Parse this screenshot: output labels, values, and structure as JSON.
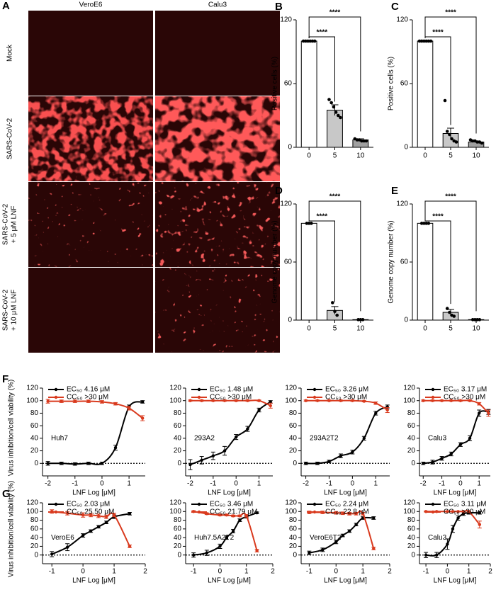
{
  "panel_a": {
    "panel": "A",
    "columns": [
      "VeroE6",
      "Calu3"
    ],
    "rows": [
      [
        "Mock"
      ],
      [
        "SARS-CoV-2"
      ],
      [
        "SARS-CoV-2",
        "+ 5 μM LNF"
      ],
      [
        "SARS-CoV-2",
        "+ 10 μM LNF"
      ]
    ]
  },
  "chart_data": [
    {
      "type": "bar",
      "panel": "B",
      "ylabel": "Positive cells (%)",
      "categories": [
        "0",
        "5",
        "10"
      ],
      "values": [
        100,
        35,
        7
      ],
      "errors": [
        0,
        5,
        1
      ],
      "points": [
        [
          100,
          100,
          100,
          100,
          100,
          100
        ],
        [
          45,
          42,
          38,
          33,
          30,
          28
        ],
        [
          8,
          7,
          7,
          6,
          6,
          6
        ]
      ],
      "colors": [
        "#ffffff",
        "#c8c8c8",
        "#a0a0a0"
      ],
      "ylim": [
        0,
        120
      ],
      "yticks": [
        0,
        60,
        120
      ],
      "annotations": [
        "****",
        "****"
      ]
    },
    {
      "type": "bar",
      "panel": "C",
      "ylabel": "Positive cells (%)",
      "categories": [
        "0",
        "5",
        "10"
      ],
      "values": [
        100,
        13,
        5
      ],
      "errors": [
        0,
        5,
        1
      ],
      "points": [
        [
          100,
          100,
          100,
          100,
          100,
          100
        ],
        [
          44,
          15,
          12,
          8,
          6,
          5
        ],
        [
          7,
          6,
          6,
          5,
          5,
          4
        ]
      ],
      "colors": [
        "#ffffff",
        "#c8c8c8",
        "#a0a0a0"
      ],
      "ylim": [
        0,
        120
      ],
      "yticks": [
        0,
        60,
        120
      ],
      "annotations": [
        "****",
        "****"
      ]
    },
    {
      "type": "bar",
      "panel": "D",
      "ylabel": "Genome copy number  (%)",
      "categories": [
        "0",
        "5",
        "10"
      ],
      "values": [
        100,
        10,
        0.5
      ],
      "errors": [
        0,
        4,
        0.3
      ],
      "points": [
        [
          100,
          100,
          100
        ],
        [
          18,
          9,
          5
        ],
        [
          0.5,
          0.5,
          0.5
        ]
      ],
      "colors": [
        "#ffffff",
        "#c8c8c8",
        "#a0a0a0"
      ],
      "ylim": [
        0,
        120
      ],
      "yticks": [
        0,
        60,
        120
      ],
      "annotations": [
        "****",
        "****"
      ]
    },
    {
      "type": "bar",
      "panel": "E",
      "ylabel": "Genome copy number  (%)",
      "categories": [
        "0",
        "5",
        "10"
      ],
      "values": [
        100,
        8,
        0.5
      ],
      "errors": [
        0,
        3,
        0.3
      ],
      "points": [
        [
          100,
          100,
          100,
          100
        ],
        [
          12,
          8,
          5,
          4
        ],
        [
          0.5,
          0.5,
          0.5,
          0.5
        ]
      ],
      "colors": [
        "#ffffff",
        "#c8c8c8",
        "#a0a0a0"
      ],
      "ylim": [
        0,
        120
      ],
      "yticks": [
        0,
        60,
        120
      ],
      "annotations": [
        "****",
        "****"
      ]
    },
    {
      "type": "dose",
      "panel": "F",
      "ylabel": "Virus inhibition/cell viability (%)",
      "label": "Huh7",
      "xlabel": "LNF Log [μM]",
      "x": [
        -2,
        -1.5,
        -1,
        -0.5,
        0,
        0.5,
        1,
        1.5
      ],
      "xlim": [
        -2.2,
        1.6
      ],
      "xticks": [
        -2,
        -1,
        0,
        1
      ],
      "ylim": [
        -20,
        120
      ],
      "yticks": [
        0,
        20,
        40,
        60,
        80,
        100,
        120
      ],
      "reference_line": 0,
      "series": [
        {
          "name": "EC₅₀ 4.16 μM",
          "color": "#000000",
          "values": [
            0,
            0,
            -1,
            0,
            0,
            25,
            90,
            98
          ],
          "errors": [
            3,
            2,
            2,
            2,
            2,
            4,
            3,
            2
          ]
        },
        {
          "name": "CC₅₀ >30 μM",
          "color": "#d93a1e",
          "values": [
            99,
            99,
            99,
            99,
            98,
            95,
            88,
            72
          ],
          "errors": [
            3,
            2,
            2,
            2,
            2,
            2,
            3,
            4
          ]
        }
      ]
    },
    {
      "type": "dose",
      "label": "293A2",
      "xlabel": "LNF Log [μM]",
      "x": [
        -2,
        -1.5,
        -1,
        -0.5,
        0,
        0.5,
        1,
        1.5
      ],
      "xlim": [
        -2.2,
        1.6
      ],
      "xticks": [
        -2,
        -1,
        0,
        1
      ],
      "ylim": [
        -20,
        120
      ],
      "yticks": [
        0,
        20,
        40,
        60,
        80,
        100,
        120
      ],
      "reference_line": 0,
      "series": [
        {
          "name": "EC₅₀ 1.48 μM",
          "color": "#000000",
          "values": [
            -2,
            5,
            12,
            20,
            42,
            55,
            85,
            98
          ],
          "errors": [
            8,
            6,
            6,
            7,
            4,
            4,
            3,
            2
          ]
        },
        {
          "name": "CC₅₀ >30 μM",
          "color": "#d93a1e",
          "values": [
            100,
            100,
            100,
            100,
            100,
            100,
            100,
            92
          ],
          "errors": [
            1,
            1,
            1,
            1,
            1,
            1,
            1,
            4
          ]
        }
      ]
    },
    {
      "type": "dose",
      "label": "293A2T2",
      "xlabel": "LNF Log [μM]",
      "x": [
        -2,
        -1.5,
        -1,
        -0.5,
        0,
        0.5,
        1,
        1.5
      ],
      "xlim": [
        -2.2,
        1.6
      ],
      "xticks": [
        -2,
        -1,
        0,
        1
      ],
      "ylim": [
        -20,
        120
      ],
      "yticks": [
        0,
        20,
        40,
        60,
        80,
        100,
        120
      ],
      "reference_line": 0,
      "series": [
        {
          "name": "EC₅₀ 3.26 μM",
          "color": "#000000",
          "values": [
            0,
            0,
            3,
            12,
            18,
            40,
            80,
            90
          ],
          "errors": [
            2,
            2,
            2,
            3,
            3,
            3,
            3,
            3
          ]
        },
        {
          "name": "CC₅₀ >30 μM",
          "color": "#d93a1e",
          "values": [
            100,
            100,
            100,
            100,
            100,
            99,
            96,
            85
          ],
          "errors": [
            1,
            1,
            1,
            1,
            1,
            1,
            2,
            4
          ]
        }
      ]
    },
    {
      "type": "dose",
      "label": "Calu3",
      "xlabel": "LNF Log [μM]",
      "x": [
        -2,
        -1.5,
        -1,
        -0.5,
        0,
        0.5,
        1,
        1.5
      ],
      "xlim": [
        -2.2,
        1.6
      ],
      "xticks": [
        -2,
        -1,
        0,
        1
      ],
      "ylim": [
        -20,
        120
      ],
      "yticks": [
        0,
        20,
        40,
        60,
        80,
        100,
        120
      ],
      "reference_line": 0,
      "series": [
        {
          "name": "EC₅₀ 3.17 μM",
          "color": "#000000",
          "values": [
            0,
            2,
            8,
            15,
            30,
            40,
            80,
            82
          ],
          "errors": [
            2,
            3,
            3,
            3,
            3,
            4,
            5,
            4
          ]
        },
        {
          "name": "CC₅₀ >30 μM",
          "color": "#d93a1e",
          "values": [
            100,
            100,
            100,
            100,
            100,
            100,
            95,
            80
          ],
          "errors": [
            1,
            1,
            1,
            1,
            1,
            1,
            2,
            5
          ]
        }
      ]
    },
    {
      "type": "dose",
      "panel": "G",
      "ylabel": "Virus inhibition/cell viability (%)",
      "label": "VeroE6",
      "xlabel": "LNF Log [μM]",
      "x": [
        -1,
        -0.5,
        0,
        0.25,
        0.5,
        0.75,
        1,
        1.5
      ],
      "xlim": [
        -1.3,
        2
      ],
      "xticks": [
        -1,
        0,
        1,
        2
      ],
      "ylim": [
        -20,
        120
      ],
      "yticks": [
        0,
        20,
        40,
        60,
        80,
        100,
        120
      ],
      "reference_line": 0,
      "series": [
        {
          "name": "EC₅₀ 2.03 μM",
          "color": "#000000",
          "values": [
            2,
            18,
            45,
            55,
            65,
            75,
            88,
            95
          ],
          "errors": [
            6,
            8,
            4,
            3,
            3,
            3,
            4,
            3
          ]
        },
        {
          "name": "CC₅₀ 25.50 μM",
          "color": "#d93a1e",
          "values": [
            100,
            96,
            92,
            92,
            90,
            88,
            92,
            20
          ],
          "errors": [
            4,
            4,
            5,
            4,
            4,
            4,
            4,
            3
          ]
        }
      ]
    },
    {
      "type": "dose",
      "label": "Huh7.5A2T2",
      "xlabel": "LNF Log [μM]",
      "x": [
        -1,
        -0.5,
        0,
        0.25,
        0.5,
        0.75,
        1,
        1.4
      ],
      "xlim": [
        -1.3,
        2
      ],
      "xticks": [
        -1,
        0,
        1,
        2
      ],
      "ylim": [
        -20,
        120
      ],
      "yticks": [
        0,
        20,
        40,
        60,
        80,
        100,
        120
      ],
      "reference_line": 0,
      "series": [
        {
          "name": "EC₅₀ 3.46 μM",
          "color": "#000000",
          "values": [
            0,
            5,
            20,
            40,
            55,
            80,
            88,
            97
          ],
          "errors": [
            5,
            6,
            5,
            4,
            4,
            3,
            3,
            2
          ]
        },
        {
          "name": "CC₅₀ 21.79 μM",
          "color": "#d93a1e",
          "values": [
            100,
            95,
            92,
            92,
            90,
            90,
            90,
            10
          ],
          "errors": [
            2,
            2,
            2,
            2,
            2,
            2,
            3,
            3
          ]
        }
      ]
    },
    {
      "type": "dose",
      "label": "VeroE6T2",
      "xlabel": "LNF Log [μM]",
      "x": [
        -1,
        -0.5,
        0,
        0.25,
        0.5,
        0.75,
        1,
        1.4
      ],
      "xlim": [
        -1.3,
        2
      ],
      "xticks": [
        -1,
        0,
        1,
        2
      ],
      "ylim": [
        -20,
        120
      ],
      "yticks": [
        0,
        20,
        40,
        60,
        80,
        100,
        120
      ],
      "reference_line": 0,
      "series": [
        {
          "name": "EC₅₀ 2.24 μM",
          "color": "#000000",
          "values": [
            5,
            12,
            30,
            45,
            55,
            70,
            85,
            85
          ],
          "errors": [
            4,
            4,
            4,
            3,
            3,
            3,
            3,
            3
          ]
        },
        {
          "name": "CC₅₀ 22.8 μM",
          "color": "#d93a1e",
          "values": [
            98,
            98,
            97,
            96,
            95,
            95,
            95,
            15
          ],
          "errors": [
            3,
            3,
            3,
            3,
            3,
            3,
            3,
            3
          ]
        }
      ]
    },
    {
      "type": "dose",
      "label": "Calu3",
      "xlabel": "LNF Log [μM]",
      "x": [
        -1,
        -0.5,
        0,
        0.25,
        0.5,
        0.75,
        1,
        1.5
      ],
      "xlim": [
        -1.3,
        2
      ],
      "xticks": [
        -1,
        0,
        1,
        2
      ],
      "ylim": [
        -20,
        120
      ],
      "yticks": [
        0,
        20,
        40,
        60,
        80,
        100,
        120
      ],
      "reference_line": 0,
      "series": [
        {
          "name": "EC₅₀ 3.11 μM",
          "color": "#000000",
          "values": [
            0,
            0,
            25,
            60,
            85,
            95,
            97,
            97
          ],
          "errors": [
            6,
            6,
            12,
            8,
            5,
            4,
            3,
            3
          ]
        },
        {
          "name": "CC₅₀ >30 μM",
          "color": "#d93a1e",
          "values": [
            100,
            100,
            100,
            100,
            100,
            100,
            100,
            70
          ],
          "errors": [
            1,
            1,
            1,
            1,
            1,
            1,
            1,
            8
          ]
        }
      ]
    }
  ]
}
